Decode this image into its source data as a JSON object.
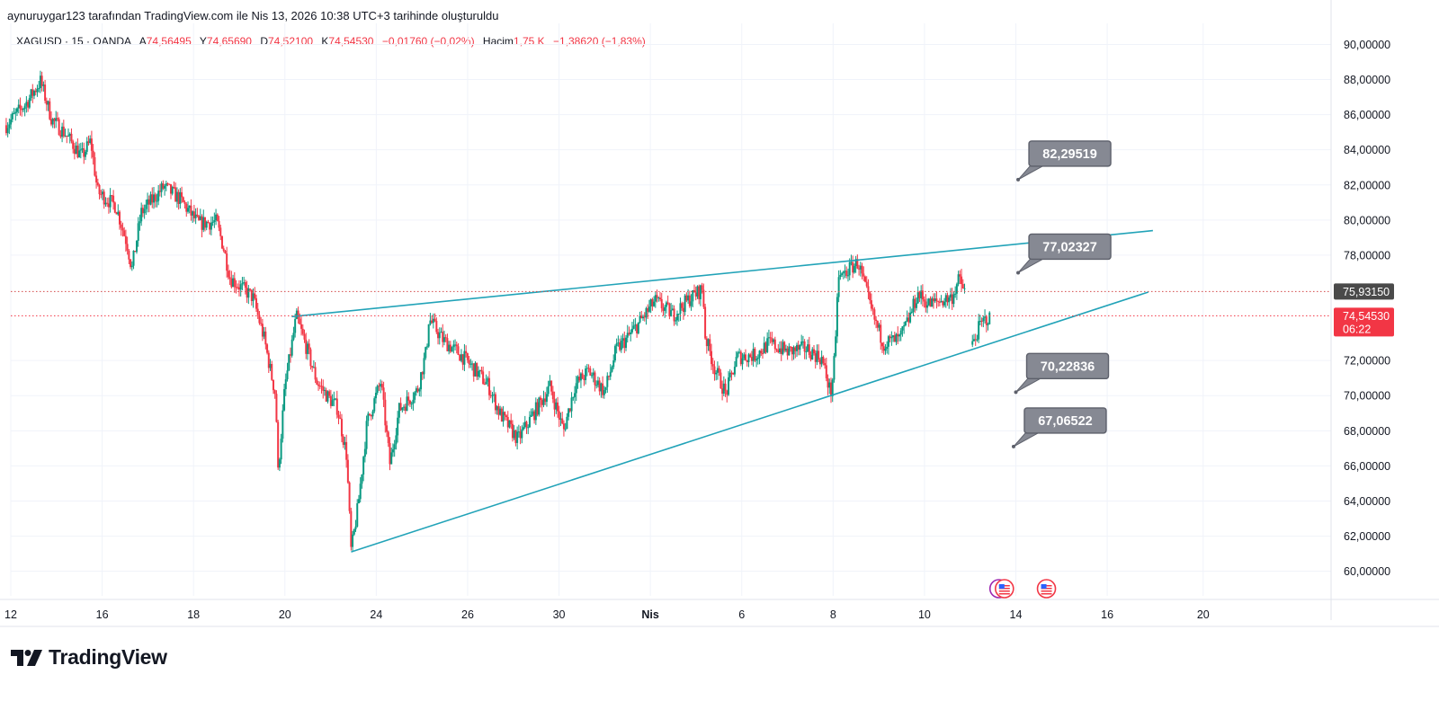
{
  "credit": "aynuruygar123 tarafından TradingView.com ile Nis 13, 2026 10:38 UTC+3 tarihinde oluşturuldu",
  "legend": {
    "symbol": "XAGUSD · 15 · OANDA",
    "open_label": "A",
    "open": "74,56495",
    "high_label": "Y",
    "high": "74,65690",
    "low_label": "D",
    "low": "74,52100",
    "close_label": "K",
    "close": "74,54530",
    "change": "−0,01760 (−0,02%)",
    "volume_label": "Hacim",
    "volume": "1,75 K",
    "volume_change": "−1,38620 (−1,83%)"
  },
  "brand": {
    "name": "TradingView"
  },
  "colors": {
    "up": "#089981",
    "down": "#f23645",
    "trendline": "#22a3b8",
    "callout": "#868993",
    "grid": "#f0f3fa",
    "badge_dark": "#4a4a4a",
    "badge_red": "#f23645"
  },
  "chart_data": {
    "type": "candlestick",
    "symbol": "XAGUSD",
    "interval": "15",
    "y_axis": {
      "ylim": [
        58.6,
        91.2
      ],
      "ticks": [
        90,
        88,
        86,
        84,
        82,
        80,
        78,
        72,
        70,
        68,
        66,
        64,
        62,
        60
      ],
      "tick_labels": [
        "90,00000",
        "88,00000",
        "86,00000",
        "84,00000",
        "82,00000",
        "80,00000",
        "78,00000",
        "72,00000",
        "70,00000",
        "68,00000",
        "66,00000",
        "64,00000",
        "62,00000",
        "60,00000"
      ]
    },
    "x_axis": {
      "xlim": [
        0,
        28.9
      ],
      "ticks": [
        {
          "t": 0.0,
          "label": "12"
        },
        {
          "t": 2.0,
          "label": "16"
        },
        {
          "t": 4.0,
          "label": "18"
        },
        {
          "t": 6.0,
          "label": "20"
        },
        {
          "t": 8.0,
          "label": "24"
        },
        {
          "t": 10.0,
          "label": "26"
        },
        {
          "t": 12.0,
          "label": "30"
        },
        {
          "t": 14.0,
          "label": "Nis",
          "bold": true
        },
        {
          "t": 16.0,
          "label": "6"
        },
        {
          "t": 18.0,
          "label": "8"
        },
        {
          "t": 20.0,
          "label": "10"
        },
        {
          "t": 22.0,
          "label": "14"
        },
        {
          "t": 24.0,
          "label": "16"
        },
        {
          "t": 26.1,
          "label": "20"
        }
      ]
    },
    "price_path": [
      [
        -0.1,
        85.4
      ],
      [
        0.35,
        86.7
      ],
      [
        0.65,
        87.9
      ],
      [
        0.9,
        85.7
      ],
      [
        1.2,
        84.9
      ],
      [
        1.55,
        83.6
      ],
      [
        1.75,
        84.5
      ],
      [
        1.9,
        81.6
      ],
      [
        2.3,
        80.8
      ],
      [
        2.55,
        78.6
      ],
      [
        2.65,
        77.2
      ],
      [
        2.85,
        80.4
      ],
      [
        3.35,
        81.9
      ],
      [
        3.7,
        81.2
      ],
      [
        4.1,
        79.8
      ],
      [
        4.5,
        79.9
      ],
      [
        4.65,
        78.5
      ],
      [
        4.8,
        76.7
      ],
      [
        5.3,
        75.6
      ],
      [
        5.55,
        73.2
      ],
      [
        5.7,
        71.2
      ],
      [
        5.8,
        70.0
      ],
      [
        5.85,
        65.6
      ],
      [
        6.0,
        70.5
      ],
      [
        6.25,
        74.5
      ],
      [
        6.5,
        72.5
      ],
      [
        6.7,
        70.8
      ],
      [
        6.95,
        69.9
      ],
      [
        7.15,
        69.3
      ],
      [
        7.35,
        66.6
      ],
      [
        7.45,
        61.1
      ],
      [
        7.6,
        63.7
      ],
      [
        7.8,
        68.5
      ],
      [
        8.1,
        70.8
      ],
      [
        8.3,
        66.1
      ],
      [
        8.5,
        69.2
      ],
      [
        8.9,
        70.3
      ],
      [
        9.1,
        72.6
      ],
      [
        9.15,
        74.4
      ],
      [
        9.45,
        73.2
      ],
      [
        9.9,
        72.2
      ],
      [
        10.25,
        71.2
      ],
      [
        10.45,
        70.6
      ],
      [
        10.7,
        69.0
      ],
      [
        11.1,
        67.5
      ],
      [
        11.45,
        69.0
      ],
      [
        11.8,
        70.5
      ],
      [
        12.1,
        68.0
      ],
      [
        12.35,
        70.6
      ],
      [
        12.65,
        71.4
      ],
      [
        13.0,
        70.2
      ],
      [
        13.25,
        72.6
      ],
      [
        13.5,
        73.3
      ],
      [
        13.8,
        74.3
      ],
      [
        14.1,
        75.4
      ],
      [
        14.5,
        74.6
      ],
      [
        14.85,
        75.5
      ],
      [
        15.15,
        76.1
      ],
      [
        15.2,
        73.4
      ],
      [
        15.4,
        71.6
      ],
      [
        15.65,
        70.1
      ],
      [
        15.9,
        72.2
      ],
      [
        16.3,
        72.3
      ],
      [
        16.6,
        73.0
      ],
      [
        17.0,
        72.5
      ],
      [
        17.4,
        72.7
      ],
      [
        17.75,
        72.1
      ],
      [
        17.95,
        70.1
      ],
      [
        18.05,
        72.5
      ],
      [
        18.1,
        76.6
      ],
      [
        18.35,
        77.2
      ],
      [
        18.55,
        77.6
      ],
      [
        18.85,
        74.7
      ],
      [
        19.1,
        73.0
      ],
      [
        19.45,
        73.2
      ],
      [
        19.65,
        74.3
      ],
      [
        19.85,
        75.8
      ],
      [
        20.1,
        75.2
      ],
      [
        20.35,
        75.4
      ],
      [
        20.6,
        75.6
      ],
      [
        20.75,
        76.6
      ],
      [
        20.9,
        75.9
      ]
    ],
    "gap_path": [
      [
        21.05,
        72.9
      ],
      [
        21.2,
        73.9
      ],
      [
        21.35,
        74.4
      ],
      [
        21.45,
        74.35
      ]
    ],
    "trendlines": [
      {
        "from": [
          6.15,
          74.5
        ],
        "to": [
          25.0,
          79.4
        ]
      },
      {
        "from": [
          7.45,
          61.1
        ],
        "to": [
          24.9,
          75.9
        ]
      }
    ],
    "price_lines": [
      {
        "value": 75.9315,
        "label": "75,93150"
      },
      {
        "value": 74.5453,
        "label": "74,54530",
        "countdown": "06:22"
      }
    ],
    "callouts": [
      {
        "label": "82,29519",
        "anchor": [
          22.05,
          82.3
        ]
      },
      {
        "label": "77,02327",
        "anchor": [
          22.05,
          77.0
        ]
      },
      {
        "label": "70,22836",
        "anchor": [
          22.0,
          70.2
        ]
      },
      {
        "label": "67,06522",
        "anchor": [
          21.95,
          67.1
        ]
      }
    ],
    "events": [
      {
        "t": 21.63,
        "kind": "earnings-flag"
      },
      {
        "t": 21.75,
        "kind": "us-flag"
      },
      {
        "t": 22.67,
        "kind": "us-flag"
      }
    ]
  }
}
